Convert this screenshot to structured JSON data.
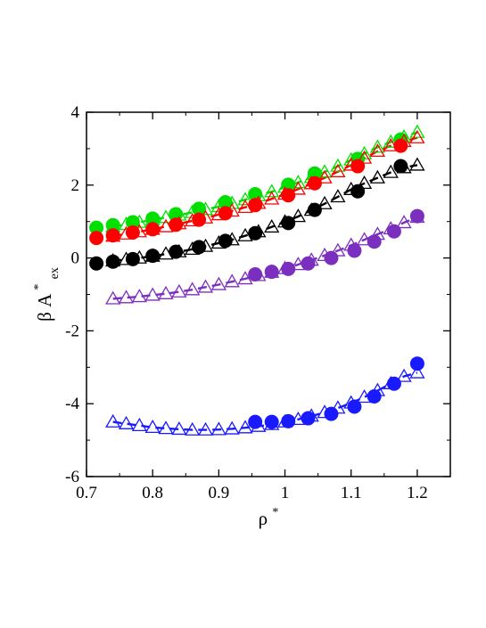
{
  "chart_data": {
    "type": "scatter",
    "title": "",
    "xlabel": "ρ",
    "xlabel_superscript": "*",
    "ylabel_prefix": "β A",
    "ylabel_superscript": "*",
    "ylabel_subscript": "ex",
    "xlim": [
      0.7,
      1.25
    ],
    "ylim": [
      -6,
      4
    ],
    "xticks": [
      0.7,
      0.8,
      0.9,
      1.0,
      1.1,
      1.2
    ],
    "xtick_labels": [
      "0.7",
      "0.8",
      "0.9",
      "1",
      "1.1",
      "1.2"
    ],
    "yticks": [
      -6,
      -4,
      -2,
      0,
      2,
      4
    ],
    "ytick_labels": [
      "-6",
      "-4",
      "-2",
      "0",
      "2",
      "4"
    ],
    "grid": false,
    "legend": "none",
    "series": [
      {
        "group": "green",
        "color": "#00e000",
        "marker": "circle-filled",
        "x": [
          0.715,
          0.74,
          0.77,
          0.8,
          0.835,
          0.87,
          0.91,
          0.955,
          1.005,
          1.045,
          1.11,
          1.175
        ],
        "y": [
          0.83,
          0.9,
          0.98,
          1.08,
          1.2,
          1.35,
          1.53,
          1.75,
          2.01,
          2.32,
          2.72,
          3.25
        ]
      },
      {
        "group": "green",
        "color": "#00e000",
        "marker": "triangle-open",
        "x": [
          0.74,
          0.76,
          0.78,
          0.8,
          0.82,
          0.84,
          0.86,
          0.88,
          0.9,
          0.92,
          0.94,
          0.96,
          0.98,
          1.0,
          1.02,
          1.04,
          1.06,
          1.08,
          1.1,
          1.12,
          1.14,
          1.16,
          1.18,
          1.2
        ],
        "y": [
          0.86,
          0.92,
          0.98,
          1.05,
          1.11,
          1.18,
          1.25,
          1.33,
          1.41,
          1.5,
          1.6,
          1.71,
          1.82,
          1.94,
          2.07,
          2.21,
          2.36,
          2.52,
          2.69,
          2.86,
          3.04,
          3.18,
          3.32,
          3.45
        ]
      },
      {
        "group": "red",
        "color": "#ff0000",
        "marker": "circle-filled",
        "x": [
          0.715,
          0.74,
          0.77,
          0.8,
          0.835,
          0.87,
          0.91,
          0.955,
          1.005,
          1.045,
          1.11,
          1.175
        ],
        "y": [
          0.55,
          0.62,
          0.7,
          0.79,
          0.91,
          1.05,
          1.23,
          1.45,
          1.72,
          2.05,
          2.52,
          3.08
        ]
      },
      {
        "group": "red",
        "color": "#ff0000",
        "marker": "triangle-open",
        "x": [
          0.74,
          0.76,
          0.78,
          0.8,
          0.82,
          0.84,
          0.86,
          0.88,
          0.9,
          0.92,
          0.94,
          0.96,
          0.98,
          1.0,
          1.02,
          1.04,
          1.06,
          1.08,
          1.1,
          1.12,
          1.14,
          1.16,
          1.18,
          1.2
        ],
        "y": [
          0.6,
          0.66,
          0.72,
          0.79,
          0.86,
          0.94,
          1.02,
          1.1,
          1.19,
          1.29,
          1.39,
          1.5,
          1.62,
          1.75,
          1.89,
          2.04,
          2.2,
          2.37,
          2.55,
          2.74,
          2.93,
          3.08,
          3.2,
          3.3
        ]
      },
      {
        "group": "black",
        "color": "#000000",
        "marker": "circle-filled",
        "x": [
          0.715,
          0.74,
          0.77,
          0.8,
          0.835,
          0.87,
          0.91,
          0.955,
          1.005,
          1.045,
          1.11,
          1.175
        ],
        "y": [
          -0.15,
          -0.1,
          -0.03,
          0.06,
          0.17,
          0.3,
          0.47,
          0.68,
          0.96,
          1.32,
          1.83,
          2.52
        ]
      },
      {
        "group": "black",
        "color": "#000000",
        "marker": "triangle-open",
        "x": [
          0.74,
          0.76,
          0.78,
          0.8,
          0.82,
          0.84,
          0.86,
          0.88,
          0.9,
          0.92,
          0.94,
          0.96,
          0.98,
          1.0,
          1.02,
          1.04,
          1.06,
          1.08,
          1.1,
          1.12,
          1.14,
          1.16,
          1.18,
          1.2
        ],
        "y": [
          -0.08,
          -0.04,
          0.0,
          0.05,
          0.11,
          0.17,
          0.24,
          0.32,
          0.41,
          0.5,
          0.61,
          0.72,
          0.85,
          0.99,
          1.14,
          1.31,
          1.49,
          1.68,
          1.88,
          2.05,
          2.2,
          2.35,
          2.48,
          2.55
        ]
      },
      {
        "group": "purple",
        "color": "#7b2fbe",
        "marker": "circle-filled",
        "x": [
          0.955,
          0.98,
          1.005,
          1.035,
          1.07,
          1.105,
          1.135,
          1.165,
          1.2
        ],
        "y": [
          -0.45,
          -0.38,
          -0.3,
          -0.15,
          0.0,
          0.2,
          0.45,
          0.73,
          1.15
        ]
      },
      {
        "group": "purple",
        "color": "#7b2fbe",
        "marker": "triangle-open",
        "x": [
          0.74,
          0.76,
          0.78,
          0.8,
          0.82,
          0.84,
          0.86,
          0.88,
          0.9,
          0.92,
          0.94,
          0.96,
          0.98,
          1.0,
          1.02,
          1.04,
          1.06,
          1.08,
          1.1,
          1.12,
          1.14,
          1.16,
          1.18,
          1.2
        ],
        "y": [
          -1.12,
          -1.09,
          -1.06,
          -1.02,
          -0.98,
          -0.93,
          -0.87,
          -0.8,
          -0.73,
          -0.65,
          -0.57,
          -0.48,
          -0.39,
          -0.29,
          -0.18,
          -0.06,
          0.07,
          0.2,
          0.35,
          0.5,
          0.65,
          0.8,
          0.97,
          1.12
        ]
      },
      {
        "group": "blue",
        "color": "#1a1aff",
        "marker": "circle-filled",
        "x": [
          0.955,
          0.98,
          1.005,
          1.035,
          1.07,
          1.105,
          1.135,
          1.165,
          1.2
        ],
        "y": [
          -4.5,
          -4.5,
          -4.48,
          -4.4,
          -4.28,
          -4.08,
          -3.8,
          -3.45,
          -2.9
        ]
      },
      {
        "group": "blue",
        "color": "#1a1aff",
        "marker": "triangle-open",
        "x": [
          0.74,
          0.76,
          0.78,
          0.8,
          0.82,
          0.84,
          0.86,
          0.88,
          0.9,
          0.92,
          0.94,
          0.96,
          0.98,
          1.0,
          1.02,
          1.04,
          1.06,
          1.08,
          1.1,
          1.12,
          1.14,
          1.16,
          1.18,
          1.2
        ],
        "y": [
          -4.5,
          -4.55,
          -4.6,
          -4.65,
          -4.68,
          -4.7,
          -4.72,
          -4.72,
          -4.71,
          -4.69,
          -4.66,
          -4.62,
          -4.57,
          -4.5,
          -4.43,
          -4.34,
          -4.24,
          -4.12,
          -3.98,
          -3.82,
          -3.64,
          -3.45,
          -3.25,
          -3.15
        ]
      }
    ],
    "fits": [
      {
        "group": "green",
        "color": "#00e000",
        "x": [
          0.715,
          1.205
        ],
        "coef": [
          0.82,
          0.0,
          0.0
        ],
        "poly_y": [
          0.83,
          1.2,
          2.0,
          3.5
        ]
      },
      {
        "group": "red",
        "color": "#ff0000",
        "x": [
          0.715,
          1.205
        ],
        "poly_y": [
          0.55,
          0.95,
          1.72,
          3.3
        ]
      },
      {
        "group": "black",
        "color": "#000000",
        "x": [
          0.715,
          1.205
        ],
        "poly_y": [
          -0.15,
          0.2,
          0.96,
          2.6
        ]
      },
      {
        "group": "purple",
        "color": "#7b2fbe",
        "x": [
          0.74,
          1.205
        ],
        "poly_y": [
          -1.12,
          -0.85,
          -0.3,
          1.15
        ]
      },
      {
        "group": "blue",
        "color": "#1a1aff",
        "x": [
          0.74,
          1.205
        ],
        "poly_y": [
          -4.5,
          -4.72,
          -4.5,
          -3.05
        ]
      }
    ]
  }
}
